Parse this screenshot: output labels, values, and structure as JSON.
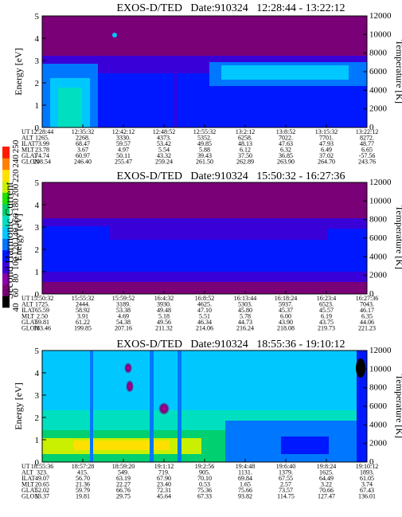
{
  "colorbar": {
    "label": "Second Harmonic Current",
    "ticks": [
      "40",
      "60",
      "80",
      "100",
      "120",
      "140",
      "160",
      "180",
      "200",
      "220",
      "240",
      "250"
    ],
    "colors": [
      "#000000",
      "#7a0077",
      "#8b00a8",
      "#3a00d8",
      "#0018ff",
      "#0077ff",
      "#00c8ff",
      "#00e0c0",
      "#00d070",
      "#22e000",
      "#c8f000",
      "#ffe000",
      "#ff8000",
      "#ff1a00"
    ]
  },
  "chart_data": [
    {
      "type": "heatmap",
      "title": "EXOS-D/TED   Date:910324   12:28:44 - 13:22:12",
      "ylabel": "Energy [eV]",
      "ylabel_right": "Temperature [K]",
      "ylim": [
        0,
        5
      ],
      "y2lim": [
        0,
        12000
      ],
      "yticks": [
        "0",
        "1",
        "2",
        "3",
        "4",
        "5"
      ],
      "y2ticks": [
        "0",
        "2000",
        "4000",
        "6000",
        "8000",
        "10000",
        "12000"
      ],
      "orbit_table": {
        "row_labels": [
          "UT",
          "ALT",
          "ILAT",
          "MLT",
          "GLAT",
          "GLON"
        ],
        "columns": [
          [
            "12:28:44",
            "1265.",
            "73.99",
            "23.78",
            "74.74",
            "208.54"
          ],
          [
            "12:35:32",
            "2268.",
            "68.47",
            "3.67",
            "60.97",
            "246.40"
          ],
          [
            "12:42:12",
            "3330.",
            "59.57",
            "4.97",
            "50.11",
            "255.47"
          ],
          [
            "12:48:52",
            "4373.",
            "53.42",
            "5.54",
            "43.32",
            "259.24"
          ],
          [
            "12:55:32",
            "5352.",
            "49.85",
            "5.88",
            "39.43",
            "261.50"
          ],
          [
            "13:2:12",
            "6258.",
            "48.13",
            "6.12",
            "37.50",
            "262.89"
          ],
          [
            "13:8:52",
            "7022.",
            "47.63",
            "6.32",
            "36.85",
            "263.90"
          ],
          [
            "13:15:32",
            "7701.",
            "47.93",
            "6.49",
            "37.02",
            "264.70"
          ],
          [
            "13:22:12",
            "8272.",
            "48.77",
            "6.65",
            "-57.56",
            "243.76"
          ]
        ]
      }
    },
    {
      "type": "heatmap",
      "title": "EXOS-D/TED   Date:910324   15:50:32 - 16:27:36",
      "ylabel": "Energy [eV]",
      "ylabel_right": "Temperature [K]",
      "ylim": [
        0,
        5
      ],
      "y2lim": [
        0,
        12000
      ],
      "yticks": [
        "0",
        "1",
        "2",
        "3",
        "4",
        "5"
      ],
      "y2ticks": [
        "0",
        "2000",
        "4000",
        "6000",
        "8000",
        "10000",
        "12000"
      ],
      "orbit_table": {
        "row_labels": [
          "UT",
          "ALT",
          "ILAT",
          "MLT",
          "GLAT",
          "GLON"
        ],
        "columns": [
          [
            "15:50:32",
            "1725.",
            "65.59",
            "2.50",
            "69.81",
            "183.46"
          ],
          [
            "15:55:32",
            "2444.",
            "58.92",
            "3.91",
            "61.22",
            "199.85"
          ],
          [
            "15:59:52",
            "3189.",
            "53.38",
            "4.69",
            "54.38",
            "207.16"
          ],
          [
            "16:4:32",
            "3930.",
            "49.48",
            "5.18",
            "49.56",
            "211.32"
          ],
          [
            "16:8:52",
            "4625.",
            "47.10",
            "5.51",
            "46.34",
            "214.06"
          ],
          [
            "16:13:44",
            "5303.",
            "45.80",
            "5.78",
            "44.73",
            "216.24"
          ],
          [
            "16:18:24",
            "5937.",
            "45.37",
            "6.00",
            "43.90",
            "218.08"
          ],
          [
            "16:23:4",
            "6523.",
            "45.57",
            "6.19",
            "43.75",
            "219.73"
          ],
          [
            "16:27:36",
            "7043.",
            "46.17",
            "6.35",
            "44.06",
            "221.23"
          ]
        ]
      }
    },
    {
      "type": "heatmap",
      "title": "EXOS-D/TED   Date:910324   18:55:36 - 19:10:12",
      "ylabel": "Energy [eV]",
      "ylabel_right": "Temperature [K]",
      "ylim": [
        0,
        5
      ],
      "y2lim": [
        0,
        12000
      ],
      "yticks": [
        "0",
        "1",
        "2",
        "3",
        "4",
        "5"
      ],
      "y2ticks": [
        "0",
        "2000",
        "4000",
        "6000",
        "8000",
        "10000",
        "12000"
      ],
      "orbit_table": {
        "row_labels": [
          "UT",
          "ALT",
          "ILAT",
          "MLT",
          "GLAT",
          "GLON"
        ],
        "columns": [
          [
            "18:55:36",
            "323.",
            "49.07",
            "20.65",
            "52.02",
            "13.37"
          ],
          [
            "18:57:28",
            "415.",
            "56.70",
            "21.36",
            "59.79",
            "19.81"
          ],
          [
            "18:59:20",
            "549.",
            "63.19",
            "22.27",
            "66.76",
            "29.75"
          ],
          [
            "19:1:12",
            "719.",
            "67.90",
            "23.40",
            "72.31",
            "45.64"
          ],
          [
            "19:2:56",
            "905.",
            "70.10",
            "0.53",
            "75.36",
            "67.33"
          ],
          [
            "19:4:48",
            "1131.",
            "69.84",
            "1.65",
            "75.66",
            "93.82"
          ],
          [
            "19:6:40",
            "1379.",
            "67.55",
            "2.57",
            "73.57",
            "114.75"
          ],
          [
            "19:8:24",
            "1625.",
            "64.49",
            "3.22",
            "70.66",
            "127.47"
          ],
          [
            "19:10:12",
            "1893.",
            "61.05",
            "3.74",
            "67.43",
            "136.01"
          ]
        ]
      }
    }
  ]
}
